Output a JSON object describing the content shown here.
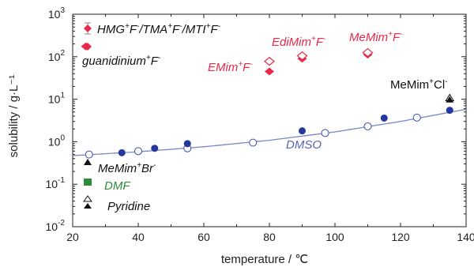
{
  "chart_data": {
    "type": "scatter",
    "xlabel": "temperature / ℃",
    "ylabel": "solubility / g·L⁻¹",
    "xlim": [
      20,
      140
    ],
    "ylim_log10": [
      -2,
      3
    ],
    "y_scale": "log",
    "x_ticks": [
      "20",
      "40",
      "60",
      "80",
      "100",
      "120",
      "140"
    ],
    "y_ticks": [
      {
        "base": "10",
        "exp": "-2"
      },
      {
        "base": "10",
        "exp": "-1"
      },
      {
        "base": "10",
        "exp": "0"
      },
      {
        "base": "10",
        "exp": "1"
      },
      {
        "base": "10",
        "exp": "2"
      },
      {
        "base": "10",
        "exp": "3"
      }
    ],
    "series": [
      {
        "name": "HMG⁺F⁻/TMA⁺F⁻/MTI⁺F⁻ (filled diamonds)",
        "marker": "diamond-filled",
        "color": "#e8294a",
        "points": [
          {
            "x": 80,
            "y": 45
          },
          {
            "x": 90,
            "y": 90
          },
          {
            "x": 110,
            "y": 112
          }
        ]
      },
      {
        "name": "open diamonds",
        "marker": "diamond-open",
        "color": "#e8294a",
        "points": [
          {
            "x": 80,
            "y": 78
          },
          {
            "x": 90,
            "y": 105
          },
          {
            "x": 110,
            "y": 125
          }
        ]
      },
      {
        "name": "guanidinium⁺F⁻",
        "marker": "diamond-filled",
        "color": "#e8294a",
        "points": [
          {
            "x": 24,
            "y": 175
          }
        ]
      },
      {
        "name": "DMSO (open circles)",
        "marker": "circle-open",
        "color": "#3a4fb0",
        "points": [
          {
            "x": 25,
            "y": 0.5
          },
          {
            "x": 40,
            "y": 0.6
          },
          {
            "x": 55,
            "y": 0.7
          },
          {
            "x": 75,
            "y": 0.95
          },
          {
            "x": 97,
            "y": 1.6
          },
          {
            "x": 110,
            "y": 2.3
          },
          {
            "x": 125,
            "y": 3.7
          }
        ]
      },
      {
        "name": "filled circles",
        "marker": "circle-filled",
        "color": "#23389e",
        "points": [
          {
            "x": 35,
            "y": 0.55
          },
          {
            "x": 45,
            "y": 0.7
          },
          {
            "x": 55,
            "y": 0.9
          },
          {
            "x": 90,
            "y": 1.8
          },
          {
            "x": 115,
            "y": 3.6
          },
          {
            "x": 135,
            "y": 5.5
          }
        ]
      },
      {
        "name": "MeMim⁺Cl⁻",
        "marker": "triangle-filled",
        "color": "#111111",
        "points": [
          {
            "x": 135,
            "y": 9.5
          }
        ]
      },
      {
        "name": "MeMim⁺Cl⁻ (open)",
        "marker": "triangle-open",
        "color": "#111111",
        "points": [
          {
            "x": 135,
            "y": 10.5
          }
        ]
      }
    ],
    "fit_curve": {
      "color": "#7b86c8",
      "points": [
        {
          "x": 20,
          "y": 0.47
        },
        {
          "x": 40,
          "y": 0.58
        },
        {
          "x": 60,
          "y": 0.76
        },
        {
          "x": 80,
          "y": 1.08
        },
        {
          "x": 100,
          "y": 1.7
        },
        {
          "x": 120,
          "y": 3.0
        },
        {
          "x": 140,
          "y": 5.8
        }
      ]
    },
    "legend": [
      {
        "marker": "diamond-filled-errorbar",
        "color": "#e8294a",
        "label": "HMG⁺F⁻/TMA⁺F⁻/MTI⁺F⁻"
      },
      {
        "marker": "diamond-filled",
        "color": "#e8294a",
        "label": "guanidinium⁺F⁻"
      },
      {
        "marker": "triangle-filled",
        "color": "#111111",
        "label": "MeMim⁺Br⁻"
      },
      {
        "marker": "square-filled",
        "color": "#2e8b3a",
        "label": "DMF"
      },
      {
        "marker": "triangle-pair",
        "color": "#111111",
        "label": "Pyridine"
      }
    ],
    "annotations": [
      {
        "text": "EMim⁺F⁻",
        "color": "#e8294a"
      },
      {
        "text": "EdiMim⁺F⁻",
        "color": "#e8294a"
      },
      {
        "text": "MeMim⁺F⁻",
        "color": "#e8294a"
      },
      {
        "text": "MeMim⁺Cl⁻",
        "color": "#111111"
      },
      {
        "text": "DMSO",
        "color": "#5a62b8"
      }
    ]
  },
  "labels": {
    "legend_hmg_main": "HMG",
    "legend_hmg_f": "F",
    "legend_tma": "/TMA",
    "legend_tma_f": "F",
    "legend_mti": "/MTI",
    "legend_mti_f": "F",
    "guan_main": "guanidinium",
    "guan_f": "F",
    "memimbr_main": "MeMim",
    "memimbr_br": "Br",
    "dmf": "DMF",
    "pyridine": "Pyridine",
    "emim_main": "EMim",
    "emim_f": "F",
    "edimim_main": "EdiMim",
    "edimim_f": "F",
    "memimf_main": "MeMim",
    "memimf_f": "F",
    "memimcl_main": "MeMim",
    "memimcl_cl": "Cl",
    "dmso": "DMSO",
    "plus": "+",
    "minus": "-"
  }
}
